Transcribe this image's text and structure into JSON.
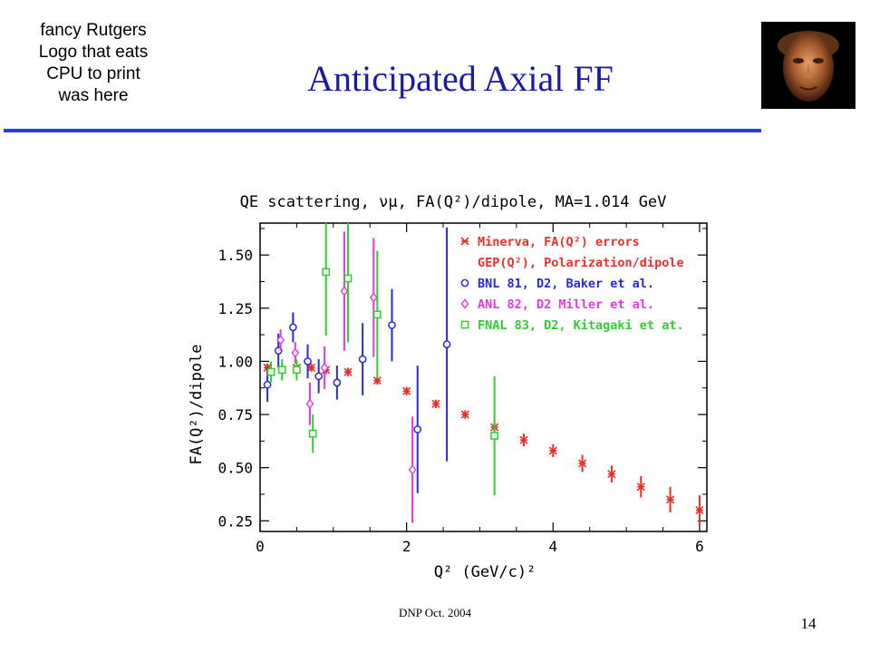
{
  "logo_placeholder": [
    "fancy Rutgers",
    "Logo that eats",
    "CPU to print",
    "was here"
  ],
  "slide_title": "Anticipated Axial FF",
  "footer": "DNP Oct. 2004",
  "page_number": "14",
  "colors": {
    "title": "#1a1aa6",
    "rule": "#1f3fe0"
  },
  "icons": {
    "photo": "bronze-head-photo-icon"
  },
  "chart_data": {
    "type": "scatter",
    "title": "QE scattering, νμ, FA(Q²)/dipole, MA=1.014 GeV",
    "xlabel": "Q² (GeV/c)²",
    "ylabel": "FA(Q²)/dipole",
    "xlim": [
      0,
      6.1
    ],
    "ylim": [
      0.2,
      1.65
    ],
    "xticks": [
      "0",
      "2",
      "4",
      "6"
    ],
    "yticks": [
      "0.25",
      "0.50",
      "0.75",
      "1.00",
      "1.25",
      "1.50"
    ],
    "grid": false,
    "legend_position": "top-right",
    "legend": [
      "Minerva, FA(Q²) errors",
      "GEP(Q²), Polarization/dipole",
      "BNL 81, D2, Baker et al.",
      "ANL 82, D2 Miller et al.",
      "FNAL 83, D2, Kitagaki et at."
    ],
    "series": [
      {
        "name": "Minerva, FA(Q²) errors",
        "color": "#e8302a",
        "marker": "star",
        "x": [
          0.1,
          0.3,
          0.5,
          0.7,
          0.9,
          1.2,
          1.6,
          2.0,
          2.4,
          2.8,
          3.2,
          3.6,
          4.0,
          4.4,
          4.8,
          5.2,
          5.6,
          6.0
        ],
        "y": [
          0.97,
          0.96,
          0.97,
          0.97,
          0.96,
          0.95,
          0.91,
          0.86,
          0.8,
          0.75,
          0.69,
          0.63,
          0.58,
          0.52,
          0.47,
          0.41,
          0.35,
          0.3
        ],
        "err": [
          0.02,
          0.02,
          0.02,
          0.02,
          0.02,
          0.02,
          0.02,
          0.02,
          0.02,
          0.02,
          0.03,
          0.03,
          0.03,
          0.04,
          0.04,
          0.05,
          0.06,
          0.07
        ]
      },
      {
        "name": "BNL 81, D2, Baker et al.",
        "color": "#2a2ad2",
        "marker": "circle",
        "x": [
          0.1,
          0.25,
          0.45,
          0.65,
          0.8,
          1.05,
          1.4,
          1.8,
          2.15,
          2.55
        ],
        "y": [
          0.89,
          1.05,
          1.16,
          1.0,
          0.93,
          0.9,
          1.01,
          1.17,
          0.68,
          1.08
        ],
        "err": [
          0.08,
          0.08,
          0.07,
          0.08,
          0.08,
          0.08,
          0.17,
          0.17,
          0.3,
          0.55
        ]
      },
      {
        "name": "ANL 82, D2 Miller et al.",
        "color": "#e23ae0",
        "marker": "diamond",
        "x": [
          0.28,
          0.48,
          0.68,
          0.88,
          1.15,
          1.55,
          2.08
        ],
        "y": [
          1.1,
          1.04,
          0.8,
          0.97,
          1.33,
          1.3,
          0.49
        ],
        "err": [
          0.05,
          0.05,
          0.1,
          0.1,
          0.28,
          0.28,
          0.25
        ]
      },
      {
        "name": "FNAL 83, D2, Kitagaki et at.",
        "color": "#2ecf2e",
        "marker": "square",
        "x": [
          0.15,
          0.3,
          0.5,
          0.72,
          0.9,
          1.2,
          1.6,
          3.2
        ],
        "y": [
          0.95,
          0.96,
          0.96,
          0.66,
          1.42,
          1.39,
          1.22,
          0.65
        ],
        "err": [
          0.05,
          0.05,
          0.05,
          0.09,
          0.3,
          0.3,
          0.3,
          0.28
        ]
      }
    ]
  }
}
